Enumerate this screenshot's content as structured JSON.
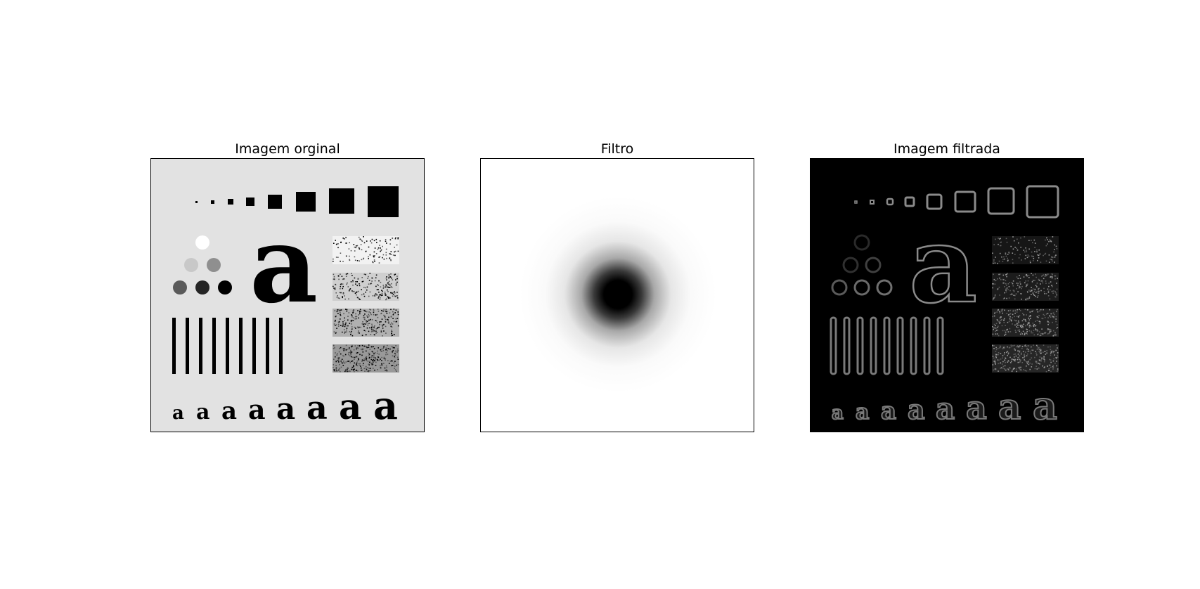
{
  "figure": {
    "panels": [
      {
        "title": "Imagem orginal"
      },
      {
        "title": "Filtro"
      },
      {
        "title": "Imagem filtrada"
      }
    ]
  },
  "test_pattern": {
    "glyph": "a",
    "colors": {
      "background": "#e2e2e2",
      "dark": "#000000",
      "filter_center": "#000000",
      "filtered_background": "#000000",
      "filtered_edges": "#8a8a8a"
    }
  }
}
